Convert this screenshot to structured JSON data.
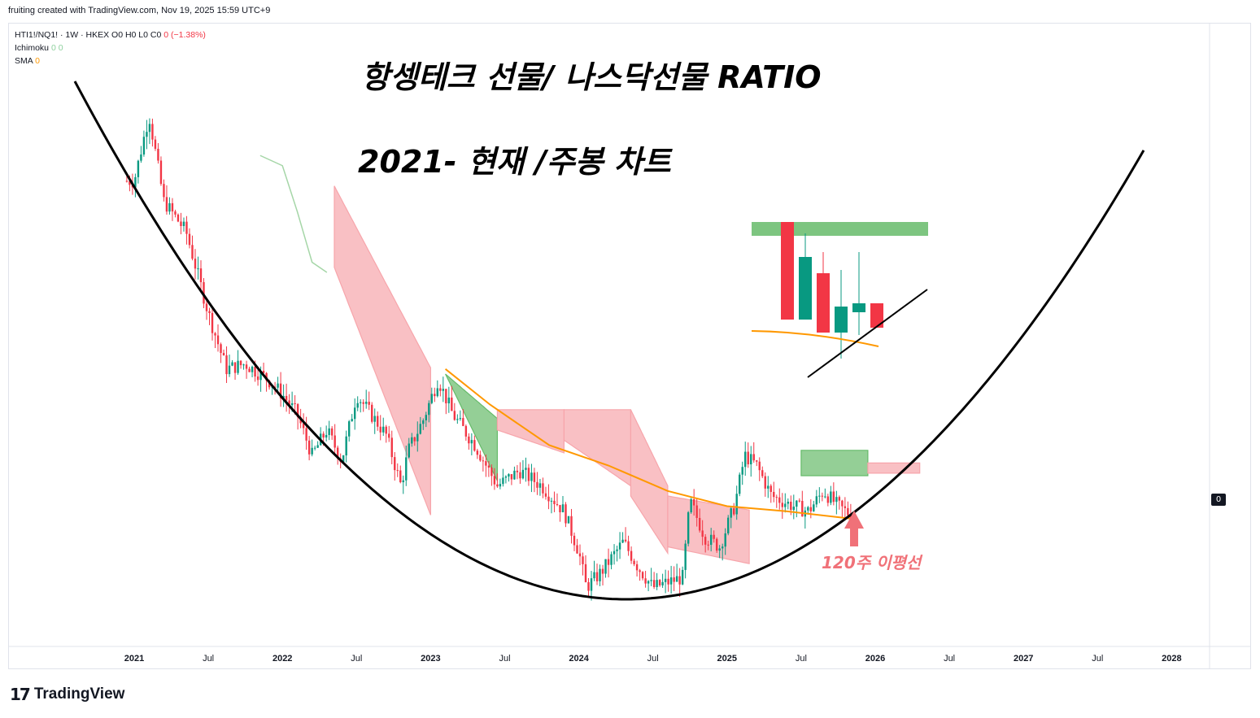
{
  "credit": "fruiting created with TradingView.com, Nov 19, 2025 15:59 UTC+9",
  "legend": {
    "symbol_line": "HTI1!/NQ1! · 1W · HKEX",
    "ohlc": "O0 H0 L0 C0",
    "change": "0 (−1.38%)",
    "indicator1_name": "Ichimoku",
    "indicator1_values": "0 0",
    "indicator2_name": "SMA",
    "indicator2_value": "0"
  },
  "annotations": {
    "title_line1": "항셍테크 선물/ 나스닥선물 RATIO",
    "title_line2": "2021- 현재 /주봉 차트",
    "ma_label": "120주 이평선"
  },
  "price_badge": "0",
  "logo_text": "TradingView",
  "colors": {
    "up": "#089981",
    "down": "#f23645",
    "cloud_bear": "#f7a5ab",
    "cloud_bull": "#66bb6a",
    "sma": "#ff9800",
    "arc": "#000000"
  },
  "chart_data": {
    "type": "line",
    "x_axis_ticks": [
      {
        "label": "2021",
        "bold": true
      },
      {
        "label": "Jul",
        "bold": false
      },
      {
        "label": "2022",
        "bold": true
      },
      {
        "label": "Jul",
        "bold": false
      },
      {
        "label": "2023",
        "bold": true
      },
      {
        "label": "Jul",
        "bold": false
      },
      {
        "label": "2024",
        "bold": true
      },
      {
        "label": "Jul",
        "bold": false
      },
      {
        "label": "2025",
        "bold": true
      },
      {
        "label": "Jul",
        "bold": false
      },
      {
        "label": "2026",
        "bold": true
      },
      {
        "label": "Jul",
        "bold": false
      },
      {
        "label": "2027",
        "bold": true
      },
      {
        "label": "Jul",
        "bold": false
      },
      {
        "label": "2028",
        "bold": true
      }
    ],
    "series": [
      {
        "name": "HTI1!/NQ1!",
        "points": [
          [
            2021.0,
            0.82
          ],
          [
            2021.1,
            0.95
          ],
          [
            2021.2,
            0.78
          ],
          [
            2021.35,
            0.72
          ],
          [
            2021.5,
            0.56
          ],
          [
            2021.62,
            0.45
          ],
          [
            2021.75,
            0.46
          ],
          [
            2021.9,
            0.43
          ],
          [
            2022.0,
            0.4
          ],
          [
            2022.1,
            0.36
          ],
          [
            2022.2,
            0.28
          ],
          [
            2022.3,
            0.33
          ],
          [
            2022.4,
            0.27
          ],
          [
            2022.5,
            0.4
          ],
          [
            2022.6,
            0.36
          ],
          [
            2022.7,
            0.32
          ],
          [
            2022.8,
            0.22
          ],
          [
            2022.85,
            0.29
          ],
          [
            2022.95,
            0.35
          ],
          [
            2023.05,
            0.43
          ],
          [
            2023.15,
            0.36
          ],
          [
            2023.3,
            0.3
          ],
          [
            2023.45,
            0.22
          ],
          [
            2023.6,
            0.25
          ],
          [
            2023.75,
            0.22
          ],
          [
            2023.9,
            0.17
          ],
          [
            2024.0,
            0.09
          ],
          [
            2024.05,
            0.02
          ],
          [
            2024.15,
            0.05
          ],
          [
            2024.3,
            0.11
          ],
          [
            2024.4,
            0.06
          ],
          [
            2024.5,
            0.02
          ],
          [
            2024.6,
            0.03
          ],
          [
            2024.7,
            0.04
          ],
          [
            2024.75,
            0.19
          ],
          [
            2024.85,
            0.12
          ],
          [
            2024.95,
            0.1
          ],
          [
            2025.05,
            0.18
          ],
          [
            2025.12,
            0.28
          ],
          [
            2025.2,
            0.26
          ],
          [
            2025.3,
            0.2
          ],
          [
            2025.45,
            0.18
          ],
          [
            2025.55,
            0.17
          ],
          [
            2025.65,
            0.21
          ],
          [
            2025.75,
            0.18
          ],
          [
            2025.85,
            0.16
          ]
        ]
      },
      {
        "name": "SMA",
        "points": [
          [
            2023.1,
            0.45
          ],
          [
            2023.4,
            0.38
          ],
          [
            2023.8,
            0.3
          ],
          [
            2024.2,
            0.26
          ],
          [
            2024.6,
            0.21
          ],
          [
            2025.0,
            0.18
          ],
          [
            2025.4,
            0.17
          ],
          [
            2025.85,
            0.155
          ]
        ]
      }
    ]
  }
}
